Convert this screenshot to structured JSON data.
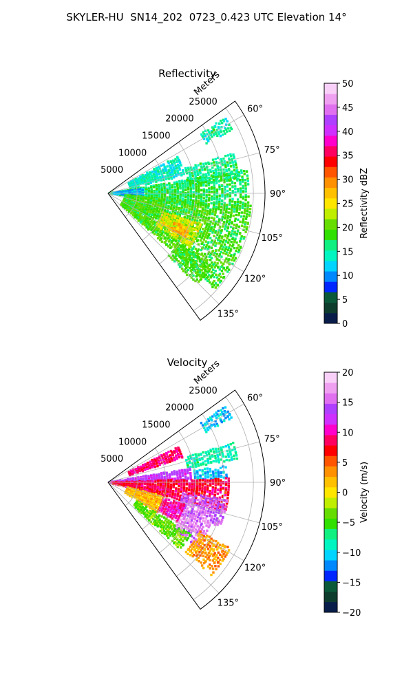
{
  "suptitle": "SKYLER-HU  SN14_202  0723_0.423 UTC Elevation 14°",
  "chart_data": [
    {
      "type": "heatmap",
      "projection": "polar-sector",
      "title": "Reflectivity",
      "range_axis_label": "Meters",
      "azimuth_range_deg": [
        54,
        144
      ],
      "range_max_m": 27000,
      "range_ticks": [
        5000,
        10000,
        15000,
        20000,
        25000
      ],
      "range_tick_labels": [
        "5000",
        "10000",
        "15000",
        "20000",
        "25000"
      ],
      "azimuth_ticks": [
        60,
        75,
        90,
        105,
        120,
        135
      ],
      "azimuth_tick_labels": [
        "60°",
        "75°",
        "90°",
        "105°",
        "120°",
        "135°"
      ],
      "grid": true,
      "colorbar": {
        "label": "Reflectivity dBZ",
        "vmin": 0,
        "vmax": 50,
        "ticks": [
          0,
          5,
          10,
          15,
          20,
          25,
          30,
          35,
          40,
          45,
          50
        ],
        "tick_labels": [
          "0",
          "5",
          "10",
          "15",
          "20",
          "25",
          "30",
          "35",
          "40",
          "45",
          "50"
        ],
        "colors": [
          "#081d4a",
          "#0e3d2e",
          "#0a5a3a",
          "#0026ff",
          "#0088ff",
          "#00d4ff",
          "#00f5c0",
          "#10f080",
          "#30e000",
          "#66dd00",
          "#c0ee00",
          "#ffe600",
          "#ffc000",
          "#ff9000",
          "#ff5500",
          "#ff0000",
          "#ff0060",
          "#ff00cc",
          "#d030ff",
          "#b040ff",
          "#e070f0",
          "#f0a0f0",
          "#f8d0f8"
        ]
      },
      "echo_regions": [
        {
          "az": [
            57,
            63
          ],
          "range_m": [
            19000,
            24000
          ],
          "value": 15
        },
        {
          "az": [
            62,
            77
          ],
          "range_m": [
            4000,
            13500
          ],
          "value": 14
        },
        {
          "az": [
            72,
            84
          ],
          "range_m": [
            14000,
            23000
          ],
          "value": 16
        },
        {
          "az": [
            80,
            98
          ],
          "range_m": [
            300,
            24500
          ],
          "value": 17
        },
        {
          "az": [
            82,
            95
          ],
          "range_m": [
            1000,
            6000
          ],
          "value": 11
        },
        {
          "az": [
            95,
            132
          ],
          "range_m": [
            3000,
            25000
          ],
          "value": 19
        },
        {
          "az": [
            108,
            124
          ],
          "range_m": [
            10000,
            17000
          ],
          "value": 24
        },
        {
          "az": [
            113,
            120
          ],
          "range_m": [
            12500,
            15500
          ],
          "value": 28
        },
        {
          "az": [
            125,
            136
          ],
          "range_m": [
            15000,
            22000
          ],
          "value": 19
        }
      ]
    },
    {
      "type": "heatmap",
      "projection": "polar-sector",
      "title": "Velocity",
      "range_axis_label": "Meters",
      "azimuth_range_deg": [
        54,
        144
      ],
      "range_max_m": 27000,
      "range_ticks": [
        5000,
        10000,
        15000,
        20000,
        25000
      ],
      "range_tick_labels": [
        "5000",
        "10000",
        "15000",
        "20000",
        "25000"
      ],
      "azimuth_ticks": [
        60,
        75,
        90,
        105,
        120,
        135
      ],
      "azimuth_tick_labels": [
        "60°",
        "75°",
        "90°",
        "105°",
        "120°",
        "135°"
      ],
      "grid": true,
      "colorbar": {
        "label": "Velocity (m/s)",
        "vmin": -20,
        "vmax": 20,
        "ticks": [
          -20,
          -15,
          -10,
          -5,
          0,
          5,
          10,
          15,
          20
        ],
        "tick_labels": [
          "−20",
          "−15",
          "−10",
          "−5",
          "0",
          "5",
          "10",
          "15",
          "20"
        ],
        "colors": [
          "#081d4a",
          "#0e3d2e",
          "#0a5a3a",
          "#0026ff",
          "#0088ff",
          "#00d4ff",
          "#00f5c0",
          "#10f080",
          "#30e000",
          "#66dd00",
          "#c0ee00",
          "#ffe600",
          "#ffc000",
          "#ff9000",
          "#ff5500",
          "#ff0000",
          "#ff0060",
          "#ff00cc",
          "#d030ff",
          "#b040ff",
          "#e070f0",
          "#f0a0f0",
          "#f8d0f8"
        ]
      },
      "echo_regions": [
        {
          "az": [
            57,
            63
          ],
          "range_m": [
            19000,
            24000
          ],
          "value": -11
        },
        {
          "az": [
            63,
            72
          ],
          "range_m": [
            4000,
            13500
          ],
          "value": 9
        },
        {
          "az": [
            72,
            80
          ],
          "range_m": [
            14000,
            23000
          ],
          "value": -8
        },
        {
          "az": [
            80,
            88
          ],
          "range_m": [
            300,
            14500
          ],
          "value": 13
        },
        {
          "az": [
            82,
            88
          ],
          "range_m": [
            15000,
            20500
          ],
          "value": -11
        },
        {
          "az": [
            88,
            104
          ],
          "range_m": [
            500,
            21000
          ],
          "value": 8
        },
        {
          "az": [
            98,
            112
          ],
          "range_m": [
            13000,
            21000
          ],
          "value": 15
        },
        {
          "az": [
            104,
            122
          ],
          "range_m": [
            3500,
            10000
          ],
          "value": 2
        },
        {
          "az": [
            106,
            120
          ],
          "range_m": [
            10000,
            14000
          ],
          "value": 10
        },
        {
          "az": [
            112,
            126
          ],
          "range_m": [
            14000,
            19000
          ],
          "value": 16
        },
        {
          "az": [
            118,
            132
          ],
          "range_m": [
            18000,
            24000
          ],
          "value": 3
        },
        {
          "az": [
            122,
            133
          ],
          "range_m": [
            6000,
            17000
          ],
          "value": -4
        }
      ]
    }
  ]
}
